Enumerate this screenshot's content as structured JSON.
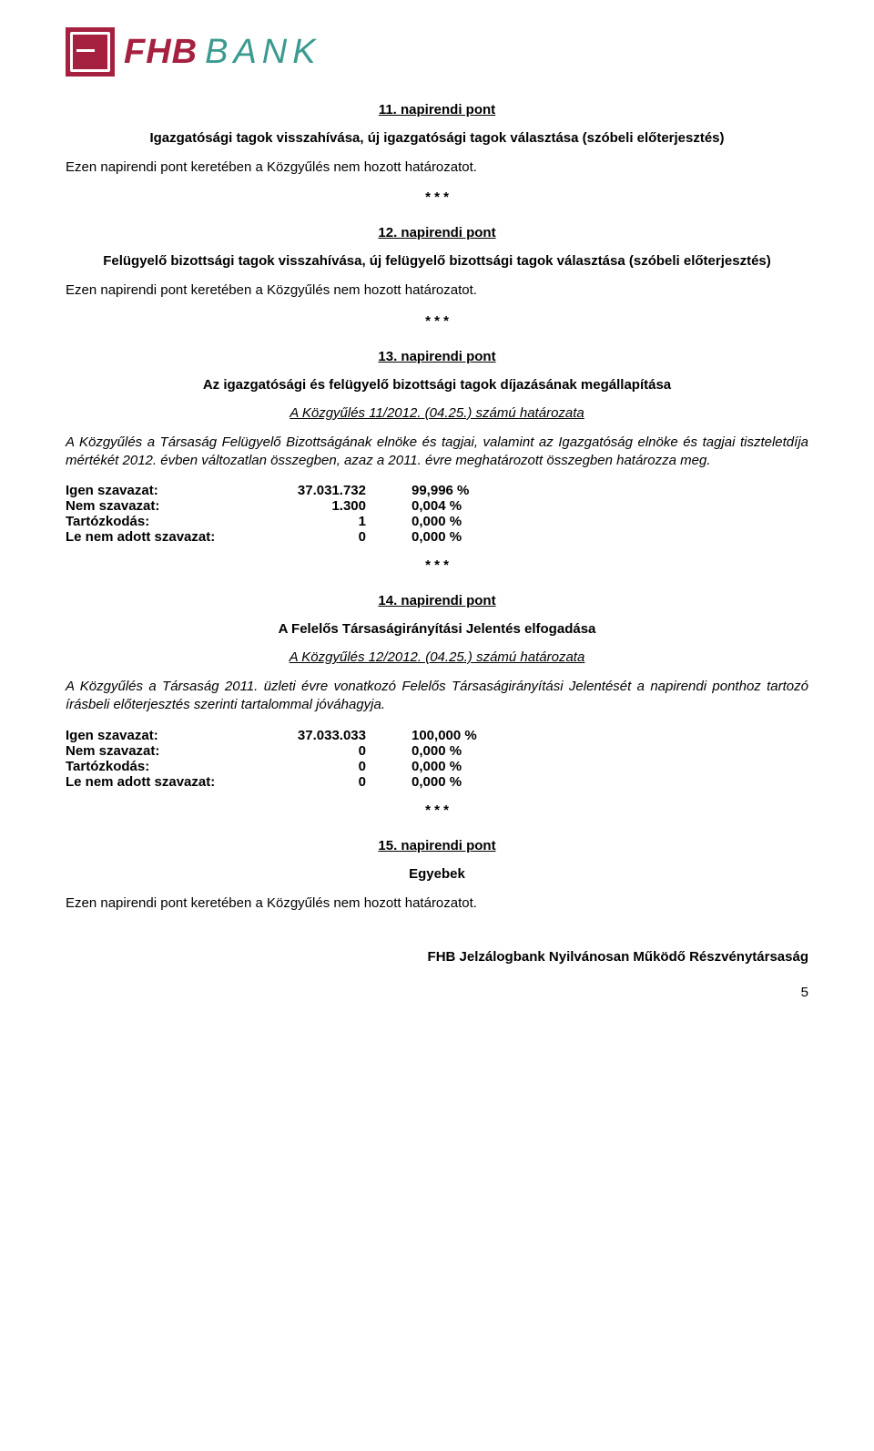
{
  "logo": {
    "fhb": "FHB",
    "bank": "BANK"
  },
  "s11": {
    "title": "11. napirendi pont",
    "sub": "Igazgatósági tagok visszahívása, új igazgatósági tagok választása (szóbeli előterjesztés)",
    "body": "Ezen napirendi pont keretében a Közgyűlés nem hozott határozatot."
  },
  "s12": {
    "title": "12. napirendi pont",
    "sub": "Felügyelő bizottsági tagok visszahívása, új felügyelő bizottsági tagok választása (szóbeli előterjesztés)",
    "body": "Ezen napirendi pont keretében a Közgyűlés nem hozott határozatot."
  },
  "s13": {
    "title": "13. napirendi pont",
    "sub": "Az igazgatósági és felügyelő bizottsági tagok díjazásának megállapítása",
    "res": "A Közgyűlés 11/2012. (04.25.) számú határozata",
    "body": "A Közgyűlés a Társaság Felügyelő Bizottságának elnöke és tagjai, valamint az Igazgatóság elnöke és tagjai tiszteletdíja mértékét 2012. évben változatlan összegben, azaz a 2011. évre meghatározott összegben határozza meg.",
    "votes": {
      "labels": {
        "igen": "Igen szavazat:",
        "nem": "Nem szavazat:",
        "tart": "Tartózkodás:",
        "lenem": "Le nem adott szavazat:"
      },
      "igen_n": "37.031.732",
      "igen_p": "99,996 %",
      "nem_n": "1.300",
      "nem_p": "0,004 %",
      "tart_n": "1",
      "tart_p": "0,000 %",
      "lenem_n": "0",
      "lenem_p": "0,000 %"
    }
  },
  "s14": {
    "title": "14. napirendi pont",
    "sub": "A Felelős Társaságirányítási Jelentés elfogadása",
    "res": "A Közgyűlés 12/2012. (04.25.) számú határozata",
    "body": "A Közgyűlés a Társaság 2011. üzleti évre vonatkozó Felelős Társaságirányítási Jelentését a napirendi ponthoz tartozó írásbeli előterjesztés szerinti tartalommal jóváhagyja.",
    "votes": {
      "igen_n": "37.033.033",
      "igen_p": "100,000 %",
      "nem_n": "0",
      "nem_p": "0,000 %",
      "tart_n": "0",
      "tart_p": "0,000 %",
      "lenem_n": "0",
      "lenem_p": "0,000 %"
    }
  },
  "s15": {
    "title": "15. napirendi pont",
    "sub": "Egyebek",
    "body": "Ezen napirendi pont keretében a Közgyűlés nem hozott határozatot."
  },
  "stars": "* * *",
  "signature": "FHB Jelzálogbank Nyilvánosan Működő Részvénytársaság",
  "page_number": "5"
}
